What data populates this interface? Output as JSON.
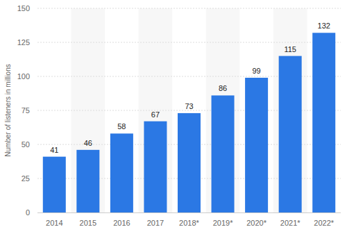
{
  "chart_data": {
    "type": "bar",
    "y_label": "Number of listeners in millions",
    "categories": [
      "2014",
      "2015",
      "2016",
      "2017",
      "2018*",
      "2019*",
      "2020*",
      "2021*",
      "2022*"
    ],
    "values": [
      41,
      46,
      58,
      67,
      73,
      86,
      99,
      115,
      132
    ],
    "color": "#2b78e4",
    "ylim": [
      0,
      150
    ],
    "yticks": [
      0,
      25,
      50,
      75,
      100,
      125,
      150
    ],
    "grid": true,
    "data_labels": true
  }
}
